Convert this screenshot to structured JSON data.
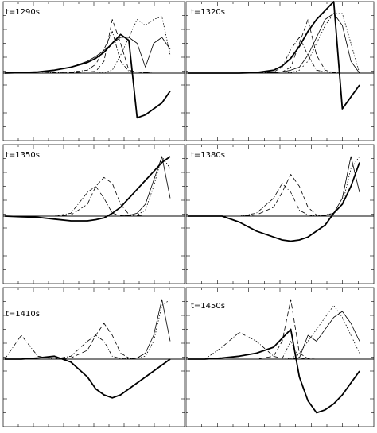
{
  "chart_data": [
    {
      "type": "line",
      "title": "t=1290s",
      "x": [
        0,
        10,
        20,
        30,
        40,
        50,
        55,
        60,
        65,
        70,
        75,
        80,
        85,
        90,
        95,
        100
      ],
      "series": [
        {
          "values": [
            0,
            0.01,
            0.02,
            0.05,
            0.1,
            0.2,
            0.28,
            0.38,
            0.5,
            0.6,
            0.6,
            0.5,
            0.1,
            0.5,
            0.6,
            0.4
          ]
        },
        {
          "values": [
            0,
            0,
            0,
            0.01,
            0.02,
            0.05,
            0.15,
            0.4,
            0.7,
            0.2,
            0.03,
            0.02,
            0.01,
            0,
            0,
            0
          ]
        },
        {
          "values": [
            0,
            0,
            0,
            0,
            0.01,
            0.02,
            0.03,
            0.2,
            0.9,
            0.5,
            0.05,
            0.02,
            0.01,
            0,
            0,
            0
          ]
        },
        {
          "values": [
            0,
            0,
            0,
            0,
            0,
            0,
            0,
            0.01,
            0.05,
            0.3,
            0.6,
            0.9,
            0.8,
            0.9,
            0.95,
            0.3
          ]
        },
        {
          "values": [
            0,
            0.01,
            0.02,
            0.05,
            0.1,
            0.18,
            0.25,
            0.35,
            0.5,
            0.65,
            0.55,
            -0.75,
            -0.7,
            -0.6,
            -0.5,
            -0.3
          ]
        }
      ]
    },
    {
      "type": "line",
      "title": "t=1320s",
      "x": [
        0,
        10,
        20,
        30,
        40,
        50,
        55,
        60,
        65,
        70,
        75,
        80,
        85,
        90,
        95,
        100
      ],
      "series": [
        {
          "values": [
            0,
            0,
            0,
            0,
            0,
            0.01,
            0.02,
            0.05,
            0.1,
            0.3,
            0.6,
            0.9,
            1.0,
            0.8,
            0.2,
            0
          ]
        },
        {
          "values": [
            0,
            0,
            0,
            0,
            0,
            0.02,
            0.1,
            0.4,
            0.6,
            0.3,
            0.05,
            0.02,
            0.01,
            0,
            0,
            0
          ]
        },
        {
          "values": [
            0,
            0,
            0,
            0,
            0,
            0,
            0.02,
            0.1,
            0.5,
            0.9,
            0.3,
            0.05,
            0.01,
            0,
            0,
            0
          ]
        },
        {
          "values": [
            0,
            0,
            0,
            0,
            0,
            0,
            0,
            0.01,
            0.05,
            0.2,
            0.5,
            0.8,
            1.0,
            1.0,
            0.5,
            0
          ]
        },
        {
          "values": [
            0,
            0,
            0,
            0,
            0.01,
            0.05,
            0.12,
            0.25,
            0.45,
            0.7,
            0.9,
            1.05,
            1.2,
            -0.6,
            -0.4,
            -0.2
          ]
        }
      ]
    },
    {
      "type": "line",
      "title": "t=1350s",
      "x": [
        0,
        10,
        20,
        30,
        40,
        50,
        55,
        60,
        65,
        70,
        75,
        80,
        85,
        90,
        95,
        100
      ],
      "series": [
        {
          "values": [
            0,
            0,
            0,
            0,
            0,
            0,
            0,
            0,
            0,
            0,
            0.01,
            0.05,
            0.2,
            0.6,
            1.0,
            0.3
          ]
        },
        {
          "values": [
            0,
            0,
            0,
            0,
            0.05,
            0.4,
            0.5,
            0.3,
            0.05,
            0.01,
            0,
            0,
            0,
            0,
            0,
            0
          ]
        },
        {
          "values": [
            0,
            0,
            0,
            0,
            0.02,
            0.2,
            0.5,
            0.65,
            0.55,
            0.2,
            0.03,
            0.01,
            0,
            0,
            0,
            0
          ]
        },
        {
          "values": [
            0,
            0,
            0,
            0,
            0,
            0,
            0,
            0,
            0,
            0,
            0.01,
            0.02,
            0.1,
            0.5,
            1.0,
            0.8
          ]
        },
        {
          "values": [
            0,
            -0.01,
            -0.02,
            -0.05,
            -0.08,
            -0.08,
            -0.06,
            -0.03,
            0.05,
            0.15,
            0.3,
            0.45,
            0.6,
            0.75,
            0.9,
            1.0
          ]
        }
      ]
    },
    {
      "type": "line",
      "title": "t=1380s",
      "x": [
        0,
        10,
        20,
        30,
        40,
        50,
        55,
        60,
        65,
        70,
        75,
        80,
        85,
        90,
        95,
        100
      ],
      "series": [
        {
          "values": [
            0,
            0,
            0,
            0,
            0,
            0,
            0,
            0,
            0,
            0,
            0,
            0.01,
            0.05,
            0.3,
            1.0,
            0.4
          ]
        },
        {
          "values": [
            0,
            0,
            0,
            0,
            0.05,
            0.3,
            0.55,
            0.4,
            0.1,
            0.02,
            0,
            0,
            0,
            0,
            0,
            0
          ]
        },
        {
          "values": [
            0,
            0,
            0,
            0,
            0.02,
            0.15,
            0.4,
            0.7,
            0.5,
            0.15,
            0.02,
            0,
            0,
            0,
            0,
            0
          ]
        },
        {
          "values": [
            0,
            0,
            0,
            0,
            0,
            0,
            0,
            0,
            0,
            0,
            0.01,
            0.02,
            0.05,
            0.2,
            0.8,
            1.0
          ]
        },
        {
          "values": [
            0,
            0,
            0,
            -0.1,
            -0.25,
            -0.35,
            -0.4,
            -0.42,
            -0.4,
            -0.35,
            -0.25,
            -0.15,
            0.05,
            0.2,
            0.5,
            0.9
          ]
        }
      ]
    },
    {
      "type": "line",
      "title": "t=1410s",
      "x": [
        0,
        10,
        20,
        30,
        40,
        50,
        55,
        60,
        65,
        70,
        75,
        80,
        85,
        90,
        95,
        100
      ],
      "series": [
        {
          "values": [
            0,
            0,
            0,
            0,
            0,
            0,
            0,
            0,
            0,
            0,
            0,
            0.02,
            0.1,
            0.4,
            1.0,
            0.3
          ]
        },
        {
          "values": [
            0,
            0.4,
            0.05,
            0,
            0.05,
            0.3,
            0.4,
            0.3,
            0.05,
            0.01,
            0,
            0,
            0,
            0,
            0,
            0
          ]
        },
        {
          "values": [
            0,
            0,
            0,
            0,
            0.02,
            0.15,
            0.4,
            0.6,
            0.4,
            0.1,
            0.02,
            0,
            0,
            0,
            0,
            0
          ]
        },
        {
          "values": [
            0,
            0,
            0,
            0,
            0,
            0,
            0,
            0,
            0,
            0,
            0.01,
            0.02,
            0.05,
            0.3,
            0.9,
            1.0
          ]
        },
        {
          "values": [
            0,
            0,
            0.02,
            0.05,
            -0.05,
            -0.3,
            -0.5,
            -0.6,
            -0.65,
            -0.6,
            -0.5,
            -0.4,
            -0.3,
            -0.2,
            -0.1,
            0
          ]
        }
      ]
    },
    {
      "type": "line",
      "title": "t=1450s",
      "x": [
        0,
        10,
        20,
        30,
        40,
        50,
        55,
        60,
        65,
        70,
        75,
        80,
        85,
        90,
        95,
        100
      ],
      "series": [
        {
          "values": [
            0,
            0,
            0,
            0,
            0,
            0,
            0,
            0,
            0.02,
            0.4,
            0.3,
            0.5,
            0.7,
            0.8,
            0.6,
            0.3
          ]
        },
        {
          "values": [
            0,
            0,
            0.2,
            0.45,
            0.3,
            0.05,
            0.01,
            0.3,
            0.02,
            0,
            0,
            0,
            0,
            0,
            0,
            0
          ]
        },
        {
          "values": [
            0,
            0,
            0,
            0,
            0,
            0.05,
            0.3,
            1.0,
            0.1,
            0.01,
            0,
            0,
            0,
            0,
            0,
            0
          ]
        },
        {
          "values": [
            0,
            0,
            0,
            0,
            0,
            0,
            0,
            0.01,
            0.1,
            0.3,
            0.5,
            0.7,
            0.9,
            0.7,
            0.4,
            0.1
          ]
        },
        {
          "values": [
            0,
            0,
            0.02,
            0.05,
            0.1,
            0.2,
            0.35,
            0.5,
            -0.3,
            -0.7,
            -0.9,
            -0.85,
            -0.75,
            -0.6,
            -0.4,
            -0.2
          ]
        }
      ]
    }
  ]
}
